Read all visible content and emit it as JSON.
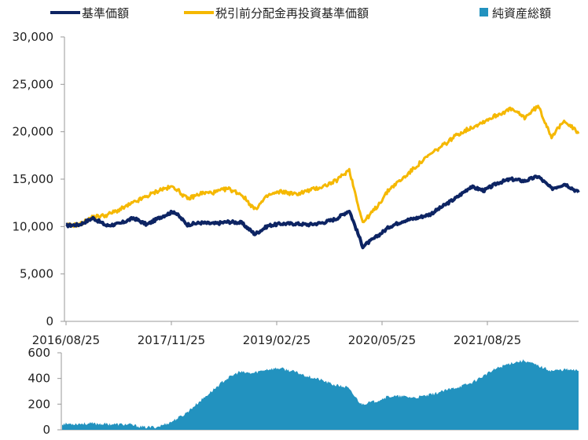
{
  "colors": {
    "nav": "#0d2463",
    "reinvested": "#f5b800",
    "net_assets": "#2292bf",
    "axis": "#999999"
  },
  "legend": [
    {
      "label": "基準価額",
      "marker": "line",
      "color": "#0d2463"
    },
    {
      "label": "税引前分配金再投資基準価額",
      "marker": "line",
      "color": "#f5b800"
    },
    {
      "label": "純資産総額",
      "marker": "square",
      "color": "#2292bf"
    }
  ],
  "chart_data": [
    {
      "type": "line",
      "title": "",
      "xlabel": "",
      "ylabel": "",
      "ylim": [
        0,
        30000
      ],
      "yticks": [
        "0",
        "5,000",
        "10,000",
        "15,000",
        "20,000",
        "25,000",
        "30,000"
      ],
      "xticks": [
        "2016/08/25",
        "2017/11/25",
        "2019/02/25",
        "2020/05/25",
        "2021/08/25"
      ],
      "grid": false,
      "legend_position": "top",
      "x": [
        "2016/08",
        "2016/10",
        "2016/12",
        "2017/02",
        "2017/04",
        "2017/06",
        "2017/08",
        "2017/10",
        "2017/12",
        "2018/02",
        "2018/04",
        "2018/06",
        "2018/08",
        "2018/10",
        "2018/12",
        "2019/02",
        "2019/04",
        "2019/06",
        "2019/08",
        "2019/10",
        "2019/12",
        "2020/02",
        "2020/03",
        "2020/04",
        "2020/06",
        "2020/08",
        "2020/10",
        "2020/12",
        "2021/02",
        "2021/04",
        "2021/06",
        "2021/08",
        "2021/10",
        "2021/12",
        "2022/02",
        "2022/04",
        "2022/06",
        "2022/08",
        "2022/10"
      ],
      "series": [
        {
          "name": "基準価額",
          "values": [
            10100,
            10200,
            10900,
            10100,
            10300,
            10900,
            10200,
            11000,
            11600,
            10200,
            10400,
            10300,
            10500,
            10400,
            9200,
            10100,
            10300,
            10300,
            10200,
            10400,
            10800,
            11700,
            7900,
            8900,
            10000,
            10600,
            10900,
            11300,
            12200,
            13100,
            14200,
            13800,
            14600,
            15000,
            14800,
            15300,
            14000,
            14500,
            13600
          ]
        },
        {
          "name": "税引前分配金再投資基準価額",
          "values": [
            10100,
            10200,
            11000,
            11200,
            11800,
            12500,
            13200,
            13900,
            14200,
            12900,
            13500,
            13600,
            14000,
            13400,
            11800,
            13300,
            13700,
            13400,
            13800,
            14200,
            14800,
            16000,
            10400,
            12000,
            14000,
            15100,
            16400,
            17600,
            18600,
            19700,
            20400,
            21100,
            21800,
            22400,
            21500,
            22700,
            19500,
            21200,
            19800
          ]
        }
      ]
    },
    {
      "type": "area",
      "title": "",
      "xlabel": "",
      "ylabel": "",
      "ylim": [
        0,
        600
      ],
      "yticks": [
        "0",
        "200",
        "400",
        "600"
      ],
      "grid": false,
      "x": [
        "2016/08",
        "2016/10",
        "2016/12",
        "2017/02",
        "2017/04",
        "2017/06",
        "2017/08",
        "2017/10",
        "2017/12",
        "2018/02",
        "2018/04",
        "2018/06",
        "2018/08",
        "2018/10",
        "2018/12",
        "2019/02",
        "2019/04",
        "2019/06",
        "2019/08",
        "2019/10",
        "2019/12",
        "2020/02",
        "2020/03",
        "2020/04",
        "2020/06",
        "2020/08",
        "2020/10",
        "2020/12",
        "2021/02",
        "2021/04",
        "2021/06",
        "2021/08",
        "2021/10",
        "2021/12",
        "2022/02",
        "2022/04",
        "2022/06",
        "2022/08",
        "2022/10"
      ],
      "series": [
        {
          "name": "純資産総額",
          "values": [
            45,
            47,
            48,
            46,
            43,
            40,
            20,
            22,
            60,
            120,
            210,
            300,
            390,
            450,
            440,
            470,
            480,
            455,
            420,
            390,
            350,
            330,
            200,
            220,
            260,
            260,
            250,
            270,
            300,
            330,
            360,
            420,
            480,
            520,
            540,
            500,
            460,
            470,
            460
          ]
        }
      ]
    }
  ]
}
